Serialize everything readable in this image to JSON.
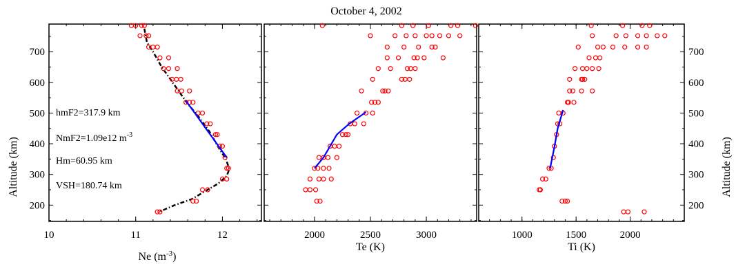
{
  "chart_data": {
    "type": "scatter",
    "title": "October 4, 2002",
    "ylabel": "Altitude (km)",
    "ylim": [
      147,
      790
    ],
    "y_ticks": [
      200,
      300,
      400,
      500,
      600,
      700
    ],
    "colors": {
      "data": "#ff0000",
      "fit": "#0000ff",
      "model": "#000000"
    },
    "panels": [
      {
        "key": "ne",
        "xlabel": "Ne (m",
        "xlabel_sup": "-3",
        "xlabel_end": ")",
        "xlim": [
          10,
          12.45
        ],
        "x_ticks": [
          10,
          11,
          12
        ],
        "x_tick_labels": [
          "10",
          "11",
          "12"
        ],
        "annotations": [
          {
            "text": "hmF2=317.9 km"
          },
          {
            "text": "NmF2=1.09e12 m",
            "sup": "-3"
          },
          {
            "text": "Hm=60.95 km"
          },
          {
            "text": "VSH=180.74 km"
          }
        ],
        "model_curve": [
          [
            11.1,
            775
          ],
          [
            11.13,
            730
          ],
          [
            11.2,
            700
          ],
          [
            11.3,
            650
          ],
          [
            11.4,
            610
          ],
          [
            11.5,
            570
          ],
          [
            11.6,
            530
          ],
          [
            11.72,
            490
          ],
          [
            11.85,
            440
          ],
          [
            11.95,
            390
          ],
          [
            12.04,
            350
          ],
          [
            12.08,
            318
          ],
          [
            12.05,
            295
          ],
          [
            11.95,
            270
          ],
          [
            11.8,
            245
          ],
          [
            11.65,
            220
          ],
          [
            11.45,
            200
          ],
          [
            11.27,
            178
          ]
        ],
        "fit_line": [
          [
            11.58,
            540
          ],
          [
            12.05,
            355
          ]
        ],
        "points": [
          [
            10.95,
            785
          ],
          [
            11.0,
            785
          ],
          [
            11.07,
            785
          ],
          [
            11.1,
            785
          ],
          [
            11.05,
            752
          ],
          [
            11.12,
            752
          ],
          [
            11.15,
            752
          ],
          [
            11.2,
            715
          ],
          [
            11.25,
            715
          ],
          [
            11.15,
            715
          ],
          [
            11.28,
            680
          ],
          [
            11.38,
            680
          ],
          [
            11.32,
            645
          ],
          [
            11.38,
            645
          ],
          [
            11.48,
            645
          ],
          [
            11.42,
            610
          ],
          [
            11.47,
            610
          ],
          [
            11.52,
            610
          ],
          [
            11.48,
            572
          ],
          [
            11.53,
            572
          ],
          [
            11.62,
            572
          ],
          [
            11.58,
            535
          ],
          [
            11.62,
            535
          ],
          [
            11.66,
            535
          ],
          [
            11.72,
            500
          ],
          [
            11.77,
            500
          ],
          [
            11.82,
            465
          ],
          [
            11.86,
            465
          ],
          [
            11.92,
            430
          ],
          [
            11.94,
            430
          ],
          [
            11.97,
            392
          ],
          [
            12.0,
            392
          ],
          [
            12.03,
            355
          ],
          [
            12.05,
            320
          ],
          [
            12.07,
            320
          ],
          [
            12.05,
            285
          ],
          [
            12.0,
            285
          ],
          [
            11.83,
            250
          ],
          [
            11.77,
            250
          ],
          [
            11.66,
            213
          ],
          [
            11.7,
            213
          ],
          [
            11.25,
            178
          ],
          [
            11.28,
            178
          ]
        ]
      },
      {
        "key": "te",
        "xlabel": "Te (K)",
        "xlim": [
          1550,
          3450
        ],
        "x_ticks": [
          2000,
          2500,
          3000
        ],
        "x_tick_labels": [
          "2000",
          "2500",
          "3000"
        ],
        "fit_line": [
          [
            2000,
            320
          ],
          [
            2080,
            355
          ],
          [
            2200,
            430
          ],
          [
            2310,
            465
          ],
          [
            2460,
            503
          ]
        ],
        "points": [
          [
            2070,
            785
          ],
          [
            2780,
            785
          ],
          [
            2880,
            785
          ],
          [
            3020,
            785
          ],
          [
            3220,
            785
          ],
          [
            3280,
            785
          ],
          [
            3440,
            785
          ],
          [
            2500,
            752
          ],
          [
            2720,
            752
          ],
          [
            2820,
            752
          ],
          [
            2900,
            752
          ],
          [
            3000,
            752
          ],
          [
            3050,
            752
          ],
          [
            3120,
            752
          ],
          [
            3200,
            752
          ],
          [
            3300,
            752
          ],
          [
            2800,
            715
          ],
          [
            2930,
            715
          ],
          [
            3050,
            715
          ],
          [
            3080,
            715
          ],
          [
            2650,
            715
          ],
          [
            2890,
            680
          ],
          [
            2920,
            680
          ],
          [
            2980,
            680
          ],
          [
            3150,
            680
          ],
          [
            2650,
            680
          ],
          [
            2750,
            680
          ],
          [
            2830,
            645
          ],
          [
            2860,
            645
          ],
          [
            2900,
            645
          ],
          [
            2680,
            645
          ],
          [
            2570,
            645
          ],
          [
            2780,
            610
          ],
          [
            2810,
            610
          ],
          [
            2850,
            610
          ],
          [
            2520,
            610
          ],
          [
            2420,
            572
          ],
          [
            2610,
            572
          ],
          [
            2630,
            572
          ],
          [
            2660,
            572
          ],
          [
            2510,
            535
          ],
          [
            2540,
            535
          ],
          [
            2570,
            535
          ],
          [
            2380,
            500
          ],
          [
            2460,
            500
          ],
          [
            2520,
            500
          ],
          [
            2320,
            465
          ],
          [
            2360,
            465
          ],
          [
            2440,
            465
          ],
          [
            2250,
            430
          ],
          [
            2280,
            430
          ],
          [
            2300,
            430
          ],
          [
            2180,
            392
          ],
          [
            2220,
            392
          ],
          [
            2140,
            392
          ],
          [
            2040,
            355
          ],
          [
            2080,
            355
          ],
          [
            2120,
            355
          ],
          [
            2200,
            355
          ],
          [
            2000,
            320
          ],
          [
            2030,
            320
          ],
          [
            2080,
            320
          ],
          [
            2130,
            320
          ],
          [
            2150,
            285
          ],
          [
            1960,
            285
          ],
          [
            2040,
            285
          ],
          [
            2080,
            285
          ],
          [
            1920,
            250
          ],
          [
            1960,
            250
          ],
          [
            2010,
            250
          ],
          [
            2020,
            213
          ],
          [
            2050,
            213
          ]
        ]
      },
      {
        "key": "ti",
        "xlabel": "Ti (K)",
        "xlim": [
          600,
          2500
        ],
        "x_ticks": [
          1000,
          1500,
          2000
        ],
        "x_tick_labels": [
          "1000",
          "1500",
          "2000"
        ],
        "fit_line": [
          [
            1260,
            320
          ],
          [
            1300,
            390
          ],
          [
            1330,
            450
          ],
          [
            1380,
            510
          ]
        ],
        "points": [
          [
            1640,
            785
          ],
          [
            1930,
            785
          ],
          [
            2110,
            785
          ],
          [
            2180,
            785
          ],
          [
            1870,
            752
          ],
          [
            1960,
            752
          ],
          [
            2070,
            752
          ],
          [
            2150,
            752
          ],
          [
            2250,
            752
          ],
          [
            2320,
            752
          ],
          [
            1650,
            752
          ],
          [
            1840,
            715
          ],
          [
            1700,
            715
          ],
          [
            1750,
            715
          ],
          [
            1520,
            715
          ],
          [
            1950,
            715
          ],
          [
            2070,
            715
          ],
          [
            2150,
            715
          ],
          [
            1680,
            680
          ],
          [
            1720,
            680
          ],
          [
            1620,
            680
          ],
          [
            1710,
            645
          ],
          [
            1650,
            645
          ],
          [
            1600,
            645
          ],
          [
            1560,
            645
          ],
          [
            1490,
            645
          ],
          [
            1580,
            610
          ],
          [
            1560,
            610
          ],
          [
            1550,
            610
          ],
          [
            1440,
            610
          ],
          [
            1550,
            572
          ],
          [
            1650,
            572
          ],
          [
            1440,
            572
          ],
          [
            1470,
            572
          ],
          [
            1480,
            535
          ],
          [
            1430,
            535
          ],
          [
            1420,
            535
          ],
          [
            1340,
            500
          ],
          [
            1380,
            500
          ],
          [
            1330,
            465
          ],
          [
            1350,
            465
          ],
          [
            1320,
            430
          ],
          [
            1300,
            392
          ],
          [
            1290,
            355
          ],
          [
            1250,
            320
          ],
          [
            1270,
            320
          ],
          [
            1220,
            285
          ],
          [
            1190,
            285
          ],
          [
            1170,
            250
          ],
          [
            1160,
            250
          ],
          [
            1370,
            213
          ],
          [
            1400,
            213
          ],
          [
            1420,
            213
          ],
          [
            1940,
            178
          ],
          [
            1980,
            178
          ],
          [
            2130,
            178
          ]
        ]
      }
    ]
  }
}
